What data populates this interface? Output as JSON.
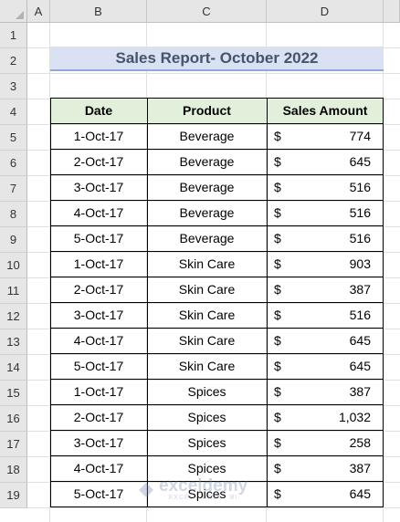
{
  "sheet": {
    "columns": [
      "A",
      "B",
      "C",
      "D"
    ],
    "rows": [
      "1",
      "2",
      "3",
      "4",
      "5",
      "6",
      "7",
      "8",
      "9",
      "10",
      "11",
      "12",
      "13",
      "14",
      "15",
      "16",
      "17",
      "18",
      "19"
    ]
  },
  "title": "Sales Report- October 2022",
  "table": {
    "headers": [
      "Date",
      "Product",
      "Sales Amount"
    ],
    "currency": "$",
    "rows": [
      {
        "date": "1-Oct-17",
        "product": "Beverage",
        "amount": "774"
      },
      {
        "date": "2-Oct-17",
        "product": "Beverage",
        "amount": "645"
      },
      {
        "date": "3-Oct-17",
        "product": "Beverage",
        "amount": "516"
      },
      {
        "date": "4-Oct-17",
        "product": "Beverage",
        "amount": "516"
      },
      {
        "date": "5-Oct-17",
        "product": "Beverage",
        "amount": "516"
      },
      {
        "date": "1-Oct-17",
        "product": "Skin Care",
        "amount": "903"
      },
      {
        "date": "2-Oct-17",
        "product": "Skin Care",
        "amount": "387"
      },
      {
        "date": "3-Oct-17",
        "product": "Skin Care",
        "amount": "516"
      },
      {
        "date": "4-Oct-17",
        "product": "Skin Care",
        "amount": "645"
      },
      {
        "date": "5-Oct-17",
        "product": "Skin Care",
        "amount": "645"
      },
      {
        "date": "1-Oct-17",
        "product": "Spices",
        "amount": "387"
      },
      {
        "date": "2-Oct-17",
        "product": "Spices",
        "amount": "1,032"
      },
      {
        "date": "3-Oct-17",
        "product": "Spices",
        "amount": "258"
      },
      {
        "date": "4-Oct-17",
        "product": "Spices",
        "amount": "387"
      },
      {
        "date": "5-Oct-17",
        "product": "Spices",
        "amount": "645"
      }
    ]
  },
  "watermark": {
    "name": "exceldemy",
    "tagline": "EXCEL · DATA · BI"
  }
}
